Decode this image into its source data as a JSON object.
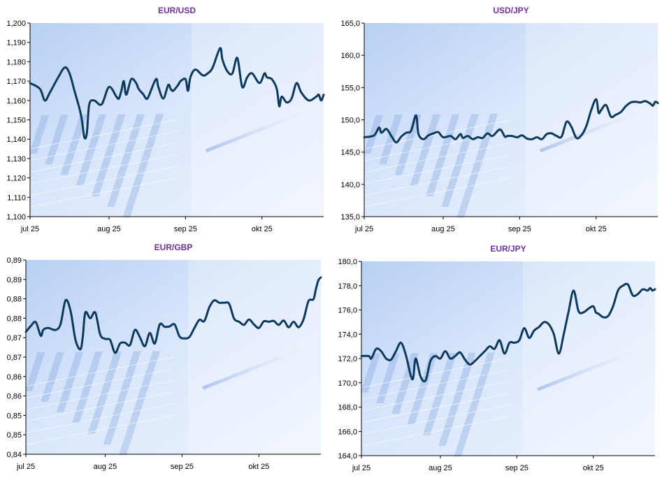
{
  "line_color": "#0b3a5e",
  "title_color": "#7030a0",
  "chart_data": [
    {
      "type": "line",
      "title": "EUR/USD",
      "ylim": [
        1.1,
        1.2
      ],
      "ytick_values": [
        1.1,
        1.11,
        1.12,
        1.13,
        1.14,
        1.15,
        1.16,
        1.17,
        1.18,
        1.19,
        1.2
      ],
      "ytick_labels": [
        "1,100",
        "1,110",
        "1,120",
        "1,130",
        "1,140",
        "1,150",
        "1,160",
        "1,170",
        "1,180",
        "1,190",
        "1,200"
      ],
      "xlim": [
        0,
        119
      ],
      "xtick_positions": [
        0,
        32,
        63,
        94
      ],
      "xtick_labels": [
        "jul 25",
        "aug 25",
        "sep 25",
        "okt 25"
      ],
      "x": [
        0,
        4,
        6,
        8,
        11,
        14,
        16,
        18,
        20,
        21,
        22,
        23,
        24,
        26,
        29,
        32,
        35,
        36,
        37,
        38,
        39,
        41,
        43,
        44,
        46,
        47,
        48,
        51,
        52,
        54,
        56,
        57,
        58,
        60,
        61,
        63,
        64,
        65,
        67,
        70,
        72,
        74,
        77,
        78,
        80,
        82,
        84,
        86,
        88,
        90,
        93,
        95,
        96,
        98,
        100,
        101,
        102,
        104,
        106,
        108,
        110,
        113,
        116,
        117,
        118,
        119
      ],
      "values": [
        1.169,
        1.166,
        1.16,
        1.164,
        1.171,
        1.177,
        1.174,
        1.165,
        1.156,
        1.15,
        1.141,
        1.143,
        1.158,
        1.16,
        1.158,
        1.167,
        1.162,
        1.161,
        1.165,
        1.17,
        1.163,
        1.171,
        1.169,
        1.166,
        1.163,
        1.161,
        1.162,
        1.171,
        1.167,
        1.161,
        1.168,
        1.166,
        1.165,
        1.168,
        1.17,
        1.171,
        1.165,
        1.172,
        1.176,
        1.173,
        1.174,
        1.177,
        1.187,
        1.181,
        1.175,
        1.174,
        1.182,
        1.167,
        1.172,
        1.174,
        1.169,
        1.174,
        1.172,
        1.171,
        1.166,
        1.157,
        1.162,
        1.159,
        1.161,
        1.169,
        1.164,
        1.16,
        1.162,
        1.163,
        1.16,
        1.163
      ]
    },
    {
      "type": "line",
      "title": "USD/JPY",
      "ylim": [
        135,
        165
      ],
      "ytick_values": [
        135,
        140,
        145,
        150,
        155,
        160,
        165
      ],
      "ytick_labels": [
        "135,0",
        "140,0",
        "145,0",
        "150,0",
        "155,0",
        "160,0",
        "165,0"
      ],
      "xlim": [
        0,
        119
      ],
      "xtick_positions": [
        0,
        32,
        63,
        94
      ],
      "xtick_labels": [
        "jul 25",
        "aug 25",
        "sep 25",
        "okt 25"
      ],
      "x": [
        0,
        4,
        6,
        7,
        9,
        11,
        13,
        15,
        17,
        19,
        21,
        22,
        24,
        26,
        28,
        30,
        32,
        35,
        37,
        39,
        40,
        42,
        44,
        46,
        48,
        50,
        52,
        55,
        57,
        58,
        60,
        62,
        64,
        66,
        68,
        70,
        72,
        74,
        76,
        78,
        80,
        82,
        84,
        86,
        88,
        90,
        92,
        94,
        95,
        96,
        98,
        100,
        102,
        104,
        106,
        108,
        110,
        112,
        114,
        116,
        117,
        118,
        119
      ],
      "values": [
        147.3,
        147.6,
        148.8,
        148.0,
        148.6,
        147.5,
        146.5,
        147.4,
        148.0,
        148.3,
        150.7,
        147.8,
        147.0,
        147.6,
        147.9,
        148.1,
        147.3,
        147.5,
        147.0,
        147.8,
        147.2,
        147.5,
        147.0,
        147.3,
        147.2,
        147.9,
        147.5,
        148.5,
        147.4,
        147.5,
        147.5,
        147.3,
        147.6,
        147.1,
        147.0,
        147.3,
        147.0,
        147.8,
        147.9,
        147.5,
        147.4,
        149.7,
        148.9,
        147.2,
        147.6,
        149.0,
        151.5,
        153.2,
        151.1,
        151.5,
        152.3,
        150.5,
        150.8,
        151.2,
        152.1,
        152.7,
        152.8,
        152.7,
        152.9,
        152.5,
        152.2,
        152.8,
        152.6
      ]
    },
    {
      "type": "line",
      "title": "EUR/GBP",
      "ylim": [
        0.84,
        0.89
      ],
      "ytick_values": [
        0.84,
        0.845,
        0.85,
        0.855,
        0.86,
        0.865,
        0.87,
        0.875,
        0.88,
        0.885,
        0.89
      ],
      "ytick_labels": [
        "0,84",
        "0,85",
        "0,85",
        "0,86",
        "0,86",
        "0,87",
        "0,87",
        "0,88",
        "0,88",
        "0,89",
        "0,89"
      ],
      "xlim": [
        0,
        119
      ],
      "xtick_positions": [
        0,
        32,
        63,
        94
      ],
      "xtick_labels": [
        "jul 25",
        "aug 25",
        "sep 25",
        "okt 25"
      ],
      "x": [
        0,
        2,
        4,
        6,
        7,
        9,
        12,
        14,
        16,
        18,
        20,
        22,
        23,
        24,
        26,
        28,
        30,
        32,
        34,
        36,
        38,
        40,
        42,
        44,
        46,
        48,
        50,
        52,
        54,
        56,
        58,
        60,
        62,
        64,
        66,
        68,
        70,
        72,
        74,
        76,
        78,
        80,
        82,
        84,
        86,
        88,
        90,
        92,
        94,
        96,
        98,
        100,
        102,
        104,
        106,
        108,
        110,
        112,
        114,
        116,
        117,
        118,
        119
      ],
      "values": [
        0.8715,
        0.873,
        0.874,
        0.8705,
        0.872,
        0.8725,
        0.872,
        0.8735,
        0.8796,
        0.877,
        0.8695,
        0.867,
        0.8705,
        0.8765,
        0.875,
        0.8765,
        0.8708,
        0.8697,
        0.8694,
        0.8661,
        0.8685,
        0.8687,
        0.8681,
        0.872,
        0.8701,
        0.8678,
        0.8712,
        0.8685,
        0.8734,
        0.8728,
        0.8729,
        0.8734,
        0.8703,
        0.8698,
        0.8702,
        0.8725,
        0.8746,
        0.8743,
        0.8778,
        0.8796,
        0.879,
        0.879,
        0.8787,
        0.8749,
        0.8741,
        0.8733,
        0.8747,
        0.8734,
        0.8725,
        0.8742,
        0.8741,
        0.8743,
        0.8733,
        0.8744,
        0.8727,
        0.8741,
        0.8727,
        0.8747,
        0.8794,
        0.8799,
        0.8825,
        0.8848,
        0.8855
      ]
    },
    {
      "type": "line",
      "title": "EUR/JPY",
      "ylim": [
        164,
        180
      ],
      "ytick_values": [
        164,
        166,
        168,
        170,
        172,
        174,
        176,
        178,
        180
      ],
      "ytick_labels": [
        "164,0",
        "166,0",
        "168,0",
        "170,0",
        "172,0",
        "174,0",
        "176,0",
        "178,0",
        "180,0"
      ],
      "xlim": [
        0,
        119
      ],
      "xtick_positions": [
        0,
        32,
        63,
        94
      ],
      "xtick_labels": [
        "jul 25",
        "aug 25",
        "sep 25",
        "okt 25"
      ],
      "x": [
        0,
        3,
        4,
        6,
        8,
        10,
        12,
        14,
        16,
        18,
        20,
        21,
        22,
        24,
        26,
        28,
        30,
        32,
        34,
        36,
        38,
        40,
        42,
        44,
        46,
        48,
        50,
        52,
        54,
        56,
        58,
        60,
        62,
        64,
        66,
        68,
        70,
        72,
        74,
        76,
        78,
        80,
        82,
        84,
        86,
        88,
        90,
        92,
        94,
        95,
        96,
        98,
        100,
        102,
        104,
        106,
        108,
        110,
        112,
        114,
        116,
        117,
        118,
        119
      ],
      "values": [
        172.2,
        172.2,
        172.0,
        172.8,
        172.6,
        172.0,
        171.9,
        172.6,
        173.3,
        172.3,
        170.6,
        170.4,
        172.0,
        170.5,
        170.2,
        171.8,
        172.2,
        172.0,
        172.6,
        172.0,
        172.2,
        172.5,
        171.9,
        171.5,
        171.8,
        172.2,
        172.6,
        173.0,
        172.8,
        173.5,
        172.4,
        173.3,
        173.3,
        173.5,
        174.5,
        173.7,
        174.3,
        174.6,
        175.0,
        174.8,
        174.0,
        172.4,
        174.0,
        175.9,
        177.6,
        175.9,
        175.8,
        176.1,
        176.3,
        175.8,
        175.7,
        175.4,
        175.5,
        176.3,
        177.6,
        178.0,
        178.1,
        177.2,
        177.3,
        177.7,
        177.6,
        177.8,
        177.6,
        177.7
      ]
    }
  ]
}
